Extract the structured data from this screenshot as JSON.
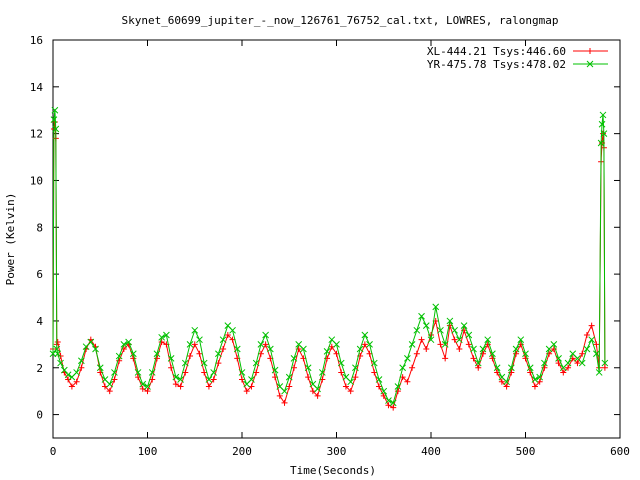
{
  "chart_data": {
    "type": "line",
    "title": "Skynet_60699_jupiter_-_now_126761_76752_cal.txt, LOWRES, ralongmap",
    "xlabel": "Time(Seconds)",
    "ylabel": "Power (Kelvin)",
    "xlim": [
      0,
      600
    ],
    "ylim": [
      -1,
      16
    ],
    "xticks": [
      0,
      100,
      200,
      300,
      400,
      500,
      600
    ],
    "yticks": [
      0,
      2,
      4,
      6,
      8,
      10,
      12,
      14,
      16
    ],
    "grid": false,
    "legend_position": "top-right",
    "series": [
      {
        "name": "XL-444.21 Tsys:446.60",
        "color": "#ff0000",
        "marker": "plus",
        "x": [
          0,
          1,
          2,
          3,
          4,
          5,
          8,
          12,
          16,
          20,
          25,
          30,
          35,
          40,
          45,
          50,
          55,
          60,
          65,
          70,
          75,
          80,
          85,
          90,
          95,
          100,
          105,
          110,
          115,
          120,
          125,
          130,
          135,
          140,
          145,
          150,
          155,
          160,
          165,
          170,
          175,
          180,
          185,
          190,
          195,
          200,
          205,
          210,
          215,
          220,
          225,
          230,
          235,
          240,
          245,
          250,
          255,
          260,
          265,
          270,
          275,
          280,
          285,
          290,
          295,
          300,
          305,
          310,
          315,
          320,
          325,
          330,
          335,
          340,
          345,
          350,
          355,
          360,
          365,
          370,
          375,
          380,
          385,
          390,
          395,
          400,
          405,
          410,
          415,
          420,
          425,
          430,
          435,
          440,
          445,
          450,
          455,
          460,
          465,
          470,
          475,
          480,
          485,
          490,
          495,
          500,
          505,
          510,
          515,
          520,
          525,
          530,
          535,
          540,
          545,
          550,
          555,
          560,
          565,
          570,
          575,
          578,
          580,
          581,
          582,
          583,
          584
        ],
        "values": [
          2.8,
          12.2,
          12.5,
          11.8,
          3.0,
          3.1,
          2.5,
          1.8,
          1.5,
          1.2,
          1.4,
          2.0,
          2.8,
          3.2,
          2.9,
          1.8,
          1.2,
          1.0,
          1.5,
          2.3,
          2.8,
          3.0,
          2.4,
          1.6,
          1.1,
          1.0,
          1.5,
          2.4,
          3.1,
          3.0,
          2.0,
          1.3,
          1.2,
          1.8,
          2.5,
          3.0,
          2.6,
          1.8,
          1.2,
          1.5,
          2.2,
          2.8,
          3.4,
          3.2,
          2.4,
          1.5,
          1.0,
          1.2,
          1.8,
          2.6,
          3.0,
          2.4,
          1.6,
          0.8,
          0.5,
          1.2,
          2.0,
          2.8,
          2.4,
          1.6,
          1.0,
          0.8,
          1.5,
          2.4,
          2.9,
          2.6,
          1.8,
          1.2,
          1.0,
          1.6,
          2.5,
          3.0,
          2.6,
          1.8,
          1.2,
          0.8,
          0.4,
          0.3,
          1.0,
          1.6,
          1.4,
          2.0,
          2.6,
          3.2,
          2.8,
          3.4,
          4.0,
          3.0,
          2.4,
          3.8,
          3.2,
          2.8,
          3.6,
          3.0,
          2.4,
          2.0,
          2.6,
          3.0,
          2.4,
          1.8,
          1.4,
          1.2,
          1.8,
          2.6,
          3.0,
          2.4,
          1.8,
          1.2,
          1.4,
          2.0,
          2.6,
          2.8,
          2.2,
          1.8,
          2.0,
          2.4,
          2.2,
          2.6,
          3.4,
          3.8,
          3.0,
          2.0,
          10.8,
          11.6,
          12.0,
          11.4,
          2.0
        ]
      },
      {
        "name": "YR-475.78 Tsys:478.02",
        "color": "#00c000",
        "marker": "cross",
        "x": [
          0,
          1,
          2,
          3,
          4,
          5,
          8,
          12,
          16,
          20,
          25,
          30,
          35,
          40,
          45,
          50,
          55,
          60,
          65,
          70,
          75,
          80,
          85,
          90,
          95,
          100,
          105,
          110,
          115,
          120,
          125,
          130,
          135,
          140,
          145,
          150,
          155,
          160,
          165,
          170,
          175,
          180,
          185,
          190,
          195,
          200,
          205,
          210,
          215,
          220,
          225,
          230,
          235,
          240,
          245,
          250,
          255,
          260,
          265,
          270,
          275,
          280,
          285,
          290,
          295,
          300,
          305,
          310,
          315,
          320,
          325,
          330,
          335,
          340,
          345,
          350,
          355,
          360,
          365,
          370,
          375,
          380,
          385,
          390,
          395,
          400,
          405,
          410,
          415,
          420,
          425,
          430,
          435,
          440,
          445,
          450,
          455,
          460,
          465,
          470,
          475,
          480,
          485,
          490,
          495,
          500,
          505,
          510,
          515,
          520,
          525,
          530,
          535,
          540,
          545,
          550,
          555,
          560,
          565,
          570,
          575,
          578,
          580,
          581,
          582,
          583,
          584
        ],
        "values": [
          2.6,
          12.6,
          13.0,
          12.2,
          2.8,
          2.6,
          2.2,
          1.9,
          1.7,
          1.6,
          1.8,
          2.3,
          2.9,
          3.1,
          2.8,
          2.0,
          1.5,
          1.3,
          1.8,
          2.5,
          3.0,
          3.1,
          2.6,
          1.8,
          1.3,
          1.2,
          1.8,
          2.6,
          3.3,
          3.4,
          2.4,
          1.6,
          1.5,
          2.2,
          3.0,
          3.6,
          3.2,
          2.2,
          1.5,
          1.8,
          2.6,
          3.2,
          3.8,
          3.6,
          2.8,
          1.8,
          1.3,
          1.5,
          2.2,
          3.0,
          3.4,
          2.8,
          1.9,
          1.2,
          1.0,
          1.6,
          2.4,
          3.0,
          2.8,
          2.0,
          1.3,
          1.1,
          1.8,
          2.7,
          3.2,
          3.0,
          2.2,
          1.6,
          1.4,
          2.0,
          2.8,
          3.4,
          3.0,
          2.2,
          1.5,
          1.0,
          0.6,
          0.5,
          1.2,
          2.0,
          2.4,
          3.0,
          3.6,
          4.2,
          3.8,
          3.2,
          4.6,
          3.6,
          3.0,
          4.0,
          3.6,
          3.2,
          3.8,
          3.4,
          2.8,
          2.2,
          2.8,
          3.2,
          2.6,
          2.0,
          1.6,
          1.4,
          2.0,
          2.8,
          3.2,
          2.6,
          2.0,
          1.5,
          1.6,
          2.2,
          2.8,
          3.0,
          2.4,
          2.0,
          2.2,
          2.6,
          2.4,
          2.2,
          2.8,
          3.2,
          2.6,
          1.8,
          11.6,
          12.4,
          12.8,
          12.0,
          2.2
        ]
      }
    ]
  }
}
